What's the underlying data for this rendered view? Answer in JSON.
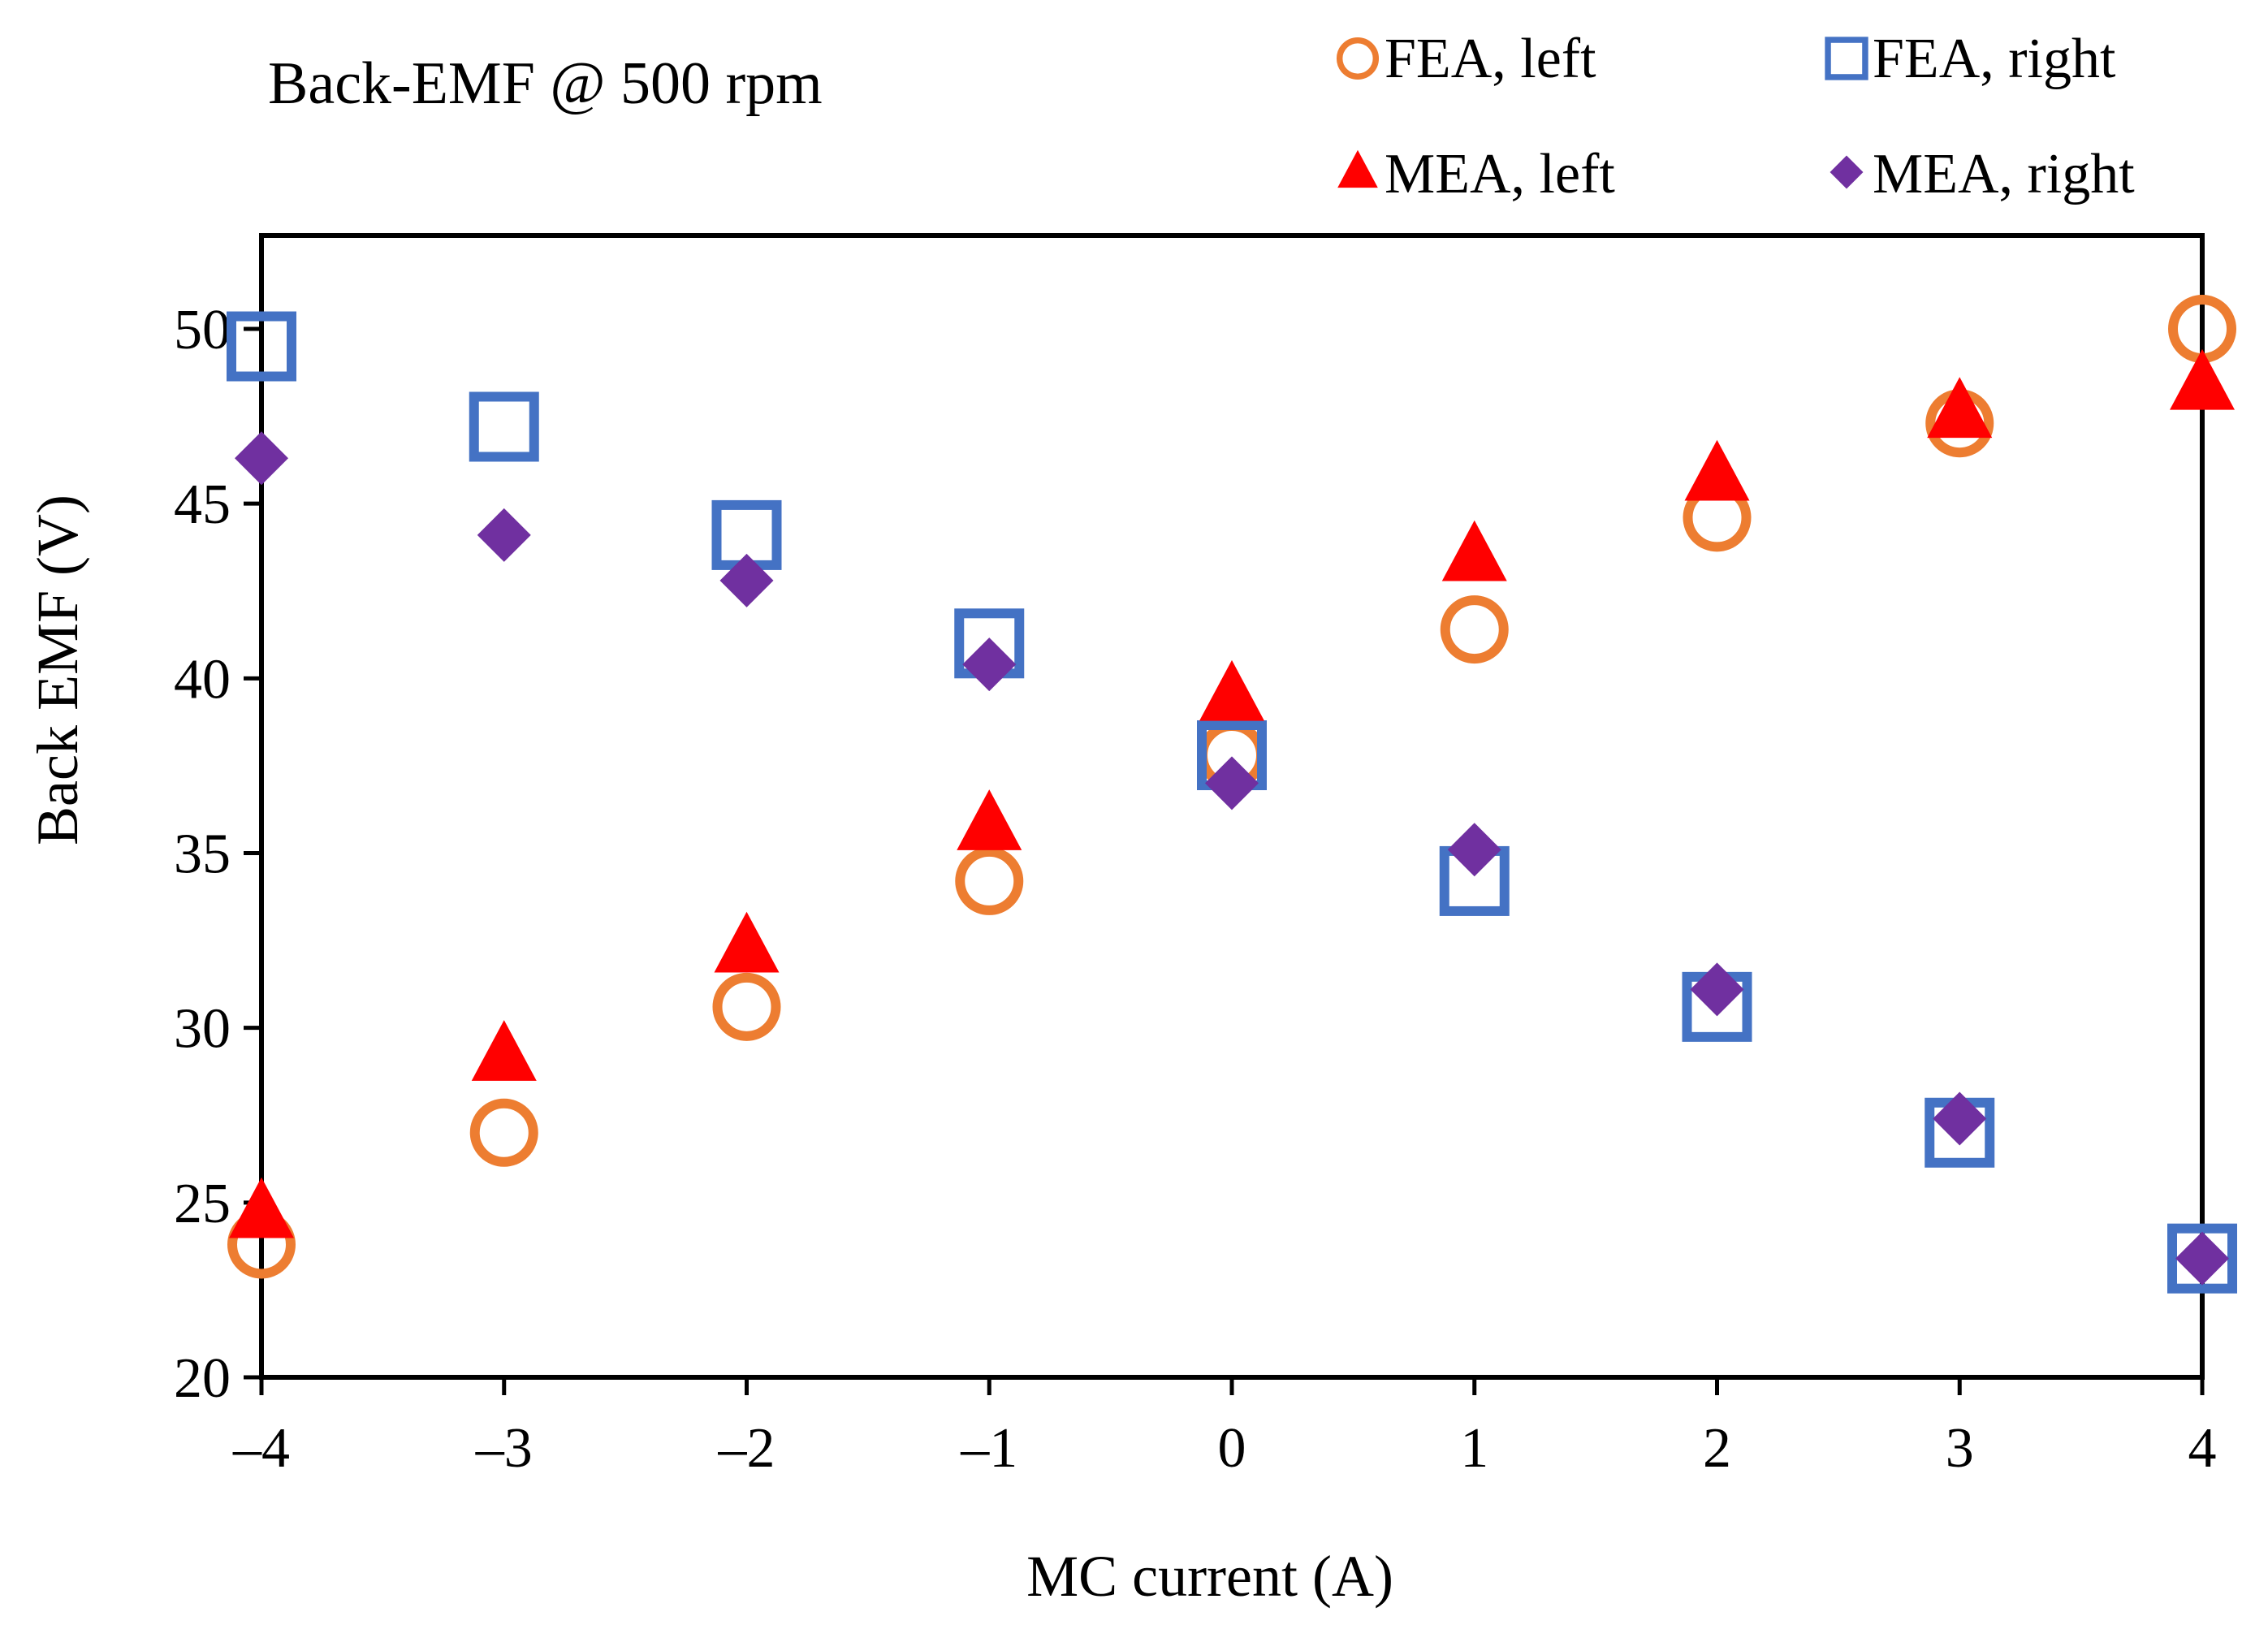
{
  "chart_data": {
    "type": "scatter",
    "annotation": "Back-EMF @ 500 rpm",
    "xlabel": "MC current (A)",
    "ylabel": "Back EMF (V)",
    "xlim": [
      -4,
      4
    ],
    "ylim": [
      20,
      52
    ],
    "xticks": [
      -4,
      -3,
      -2,
      -1,
      0,
      1,
      2,
      3,
      4
    ],
    "xtick_labels": [
      "–4",
      "–3",
      "–2",
      "–1",
      "0",
      "1",
      "2",
      "3",
      "4"
    ],
    "yticks": [
      20,
      25,
      30,
      35,
      40,
      45,
      50
    ],
    "grid": false,
    "legend_position": "top",
    "series": [
      {
        "name": "FEA, left",
        "marker": "open-circle",
        "color": "#ED7D31",
        "x": [
          -4,
          -3,
          -2,
          -1,
          0,
          1,
          2,
          3,
          4
        ],
        "y": [
          23.8,
          27.0,
          30.6,
          34.2,
          37.8,
          41.4,
          44.6,
          47.3,
          50.0
        ]
      },
      {
        "name": "FEA, right",
        "marker": "open-square",
        "color": "#4472C4",
        "x": [
          -4,
          -3,
          -2,
          -1,
          0,
          1,
          2,
          3,
          4
        ],
        "y": [
          49.5,
          47.2,
          44.1,
          41.0,
          37.8,
          34.2,
          30.6,
          27.0,
          23.4
        ]
      },
      {
        "name": "MEA, left",
        "marker": "filled-triangle",
        "color": "#FF0000",
        "x": [
          -4,
          -3,
          -2,
          -1,
          0,
          1,
          2,
          3,
          4
        ],
        "y": [
          24.7,
          29.2,
          32.3,
          35.8,
          39.5,
          43.5,
          45.8,
          47.6,
          48.4
        ]
      },
      {
        "name": "MEA, right",
        "marker": "filled-diamond",
        "color": "#7030A0",
        "x": [
          -4,
          -3,
          -2,
          -1,
          0,
          1,
          2,
          3,
          4
        ],
        "y": [
          46.3,
          44.1,
          42.8,
          40.4,
          37.0,
          35.1,
          31.1,
          27.4,
          23.4
        ]
      }
    ]
  }
}
